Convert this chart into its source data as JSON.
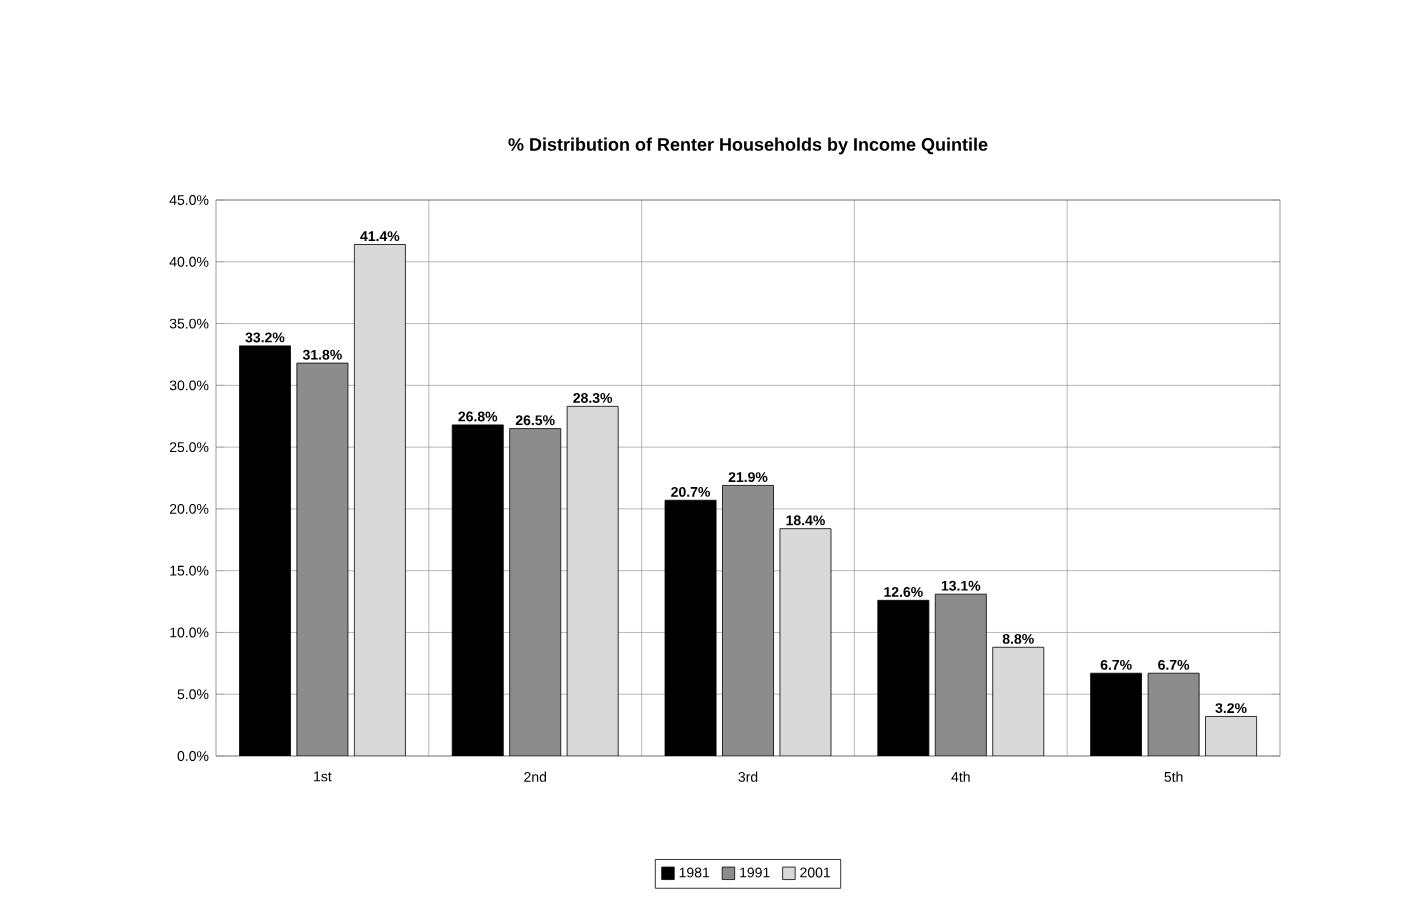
{
  "chart_data": {
    "type": "bar",
    "title": "% Distribution of Renter Households by Income Quintile",
    "categories": [
      "1st",
      "2nd",
      "3rd",
      "4th",
      "5th"
    ],
    "series": [
      {
        "name": "1981",
        "color": "#000000",
        "values": [
          33.2,
          26.8,
          20.7,
          12.6,
          6.7
        ],
        "value_labels": [
          "33.2%",
          "26.8%",
          "20.7%",
          "12.6%",
          "6.7%"
        ]
      },
      {
        "name": "1991",
        "color": "#8c8c8c",
        "values": [
          31.8,
          26.5,
          21.9,
          13.1,
          6.7
        ],
        "value_labels": [
          "31.8%",
          "26.5%",
          "21.9%",
          "13.1%",
          "6.7%"
        ]
      },
      {
        "name": "2001",
        "color": "#d9d9d9",
        "values": [
          41.4,
          28.3,
          18.4,
          8.8,
          3.2
        ],
        "value_labels": [
          "41.4%",
          "28.3%",
          "18.4%",
          "8.8%",
          "3.2%"
        ]
      }
    ],
    "ylim": [
      0,
      45
    ],
    "yticks": [
      {
        "value": 0,
        "label": "0.0%"
      },
      {
        "value": 5,
        "label": "5.0%"
      },
      {
        "value": 10,
        "label": "10.0%"
      },
      {
        "value": 15,
        "label": "15.0%"
      },
      {
        "value": 20,
        "label": "20.0%"
      },
      {
        "value": 25,
        "label": "25.0%"
      },
      {
        "value": 30,
        "label": "30.0%"
      },
      {
        "value": 35,
        "label": "35.0%"
      },
      {
        "value": 40,
        "label": "40.0%"
      },
      {
        "value": 45,
        "label": "45.0%"
      }
    ],
    "grid": true,
    "legend": "bottom"
  }
}
